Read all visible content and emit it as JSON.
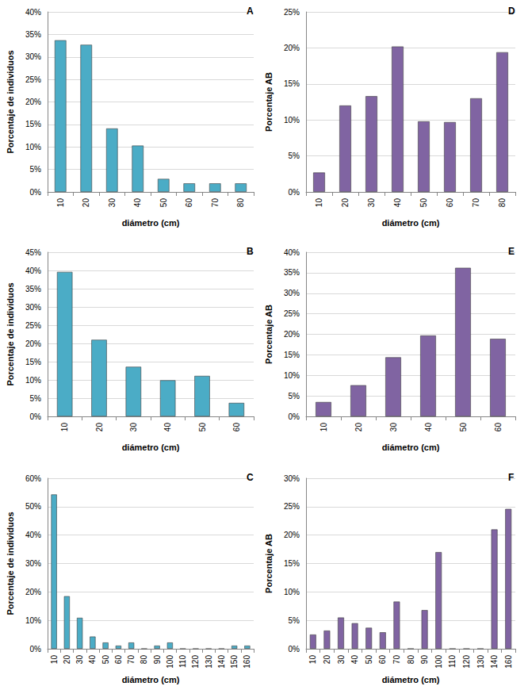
{
  "chart_data": [
    {
      "type": "bar",
      "title": "A",
      "x_label": "diámetro (cm)",
      "y_label": "Porcentaje de individuos",
      "categories": [
        "10",
        "20",
        "30",
        "40",
        "50",
        "60",
        "70",
        "80"
      ],
      "values": [
        33.7,
        32.7,
        14.1,
        10.3,
        2.9,
        1.9,
        1.9,
        1.9
      ],
      "color": "#4bacc6",
      "ylim": [
        0,
        40
      ],
      "yticks": [
        {
          "value": 0,
          "label": "0%"
        },
        {
          "value": 5,
          "label": "5%"
        },
        {
          "value": 10,
          "label": "10%"
        },
        {
          "value": 15,
          "label": "15%"
        },
        {
          "value": 20,
          "label": "20%"
        },
        {
          "value": 25,
          "label": "25%"
        },
        {
          "value": 30,
          "label": "30%"
        },
        {
          "value": 35,
          "label": "35%"
        },
        {
          "value": 40,
          "label": "40%"
        }
      ],
      "grid": true
    },
    {
      "type": "bar",
      "title": "D",
      "x_label": "diámetro (cm)",
      "y_label": "Porcentaje AB",
      "categories": [
        "10",
        "20",
        "30",
        "40",
        "50",
        "60",
        "70",
        "80"
      ],
      "values": [
        2.7,
        12.0,
        13.3,
        20.2,
        9.8,
        9.7,
        13.0,
        19.4
      ],
      "color": "#8064a2",
      "ylim": [
        0,
        25
      ],
      "yticks": [
        {
          "value": 0,
          "label": "0%"
        },
        {
          "value": 5,
          "label": "5%"
        },
        {
          "value": 10,
          "label": "10%"
        },
        {
          "value": 15,
          "label": "15%"
        },
        {
          "value": 20,
          "label": "20%"
        },
        {
          "value": 25,
          "label": "25%"
        }
      ],
      "grid": true
    },
    {
      "type": "bar",
      "title": "B",
      "x_label": "diámetro (cm)",
      "y_label": "Porcentaje de individuos",
      "categories": [
        "10",
        "20",
        "30",
        "40",
        "50",
        "60"
      ],
      "values": [
        39.6,
        21.0,
        13.6,
        9.9,
        11.1,
        3.7
      ],
      "color": "#4bacc6",
      "ylim": [
        0,
        45
      ],
      "yticks": [
        {
          "value": 0,
          "label": "0%"
        },
        {
          "value": 5,
          "label": "5%"
        },
        {
          "value": 10,
          "label": "10%"
        },
        {
          "value": 15,
          "label": "15%"
        },
        {
          "value": 20,
          "label": "20%"
        },
        {
          "value": 25,
          "label": "25%"
        },
        {
          "value": 30,
          "label": "30%"
        },
        {
          "value": 35,
          "label": "35%"
        },
        {
          "value": 40,
          "label": "40%"
        },
        {
          "value": 45,
          "label": "45%"
        }
      ],
      "grid": true
    },
    {
      "type": "bar",
      "title": "E",
      "x_label": "diámetro (cm)",
      "y_label": "Porcentaje AB",
      "categories": [
        "10",
        "20",
        "30",
        "40",
        "50",
        "60"
      ],
      "values": [
        3.5,
        7.6,
        14.4,
        19.7,
        36.2,
        18.9
      ],
      "color": "#8064a2",
      "ylim": [
        0,
        40
      ],
      "yticks": [
        {
          "value": 0,
          "label": "0%"
        },
        {
          "value": 5,
          "label": "5%"
        },
        {
          "value": 10,
          "label": "10%"
        },
        {
          "value": 15,
          "label": "15%"
        },
        {
          "value": 20,
          "label": "20%"
        },
        {
          "value": 25,
          "label": "25%"
        },
        {
          "value": 30,
          "label": "30%"
        },
        {
          "value": 35,
          "label": "35%"
        },
        {
          "value": 40,
          "label": "40%"
        }
      ],
      "grid": true
    },
    {
      "type": "bar",
      "title": "C",
      "x_label": "diámetro (cm)",
      "y_label": "Porcentaje de individuos",
      "categories": [
        "10",
        "20",
        "30",
        "40",
        "50",
        "60",
        "70",
        "80",
        "90",
        "100",
        "110",
        "120",
        "130",
        "140",
        "150",
        "160"
      ],
      "values": [
        54.3,
        18.5,
        10.9,
        4.3,
        2.2,
        1.1,
        2.2,
        0,
        1.1,
        2.2,
        0,
        0,
        0,
        0,
        1.1,
        1.1
      ],
      "color": "#4bacc6",
      "ylim": [
        0,
        60
      ],
      "yticks": [
        {
          "value": 0,
          "label": "0%"
        },
        {
          "value": 10,
          "label": "10%"
        },
        {
          "value": 20,
          "label": "20%"
        },
        {
          "value": 30,
          "label": "30%"
        },
        {
          "value": 40,
          "label": "40%"
        },
        {
          "value": 50,
          "label": "50%"
        },
        {
          "value": 60,
          "label": "60%"
        }
      ],
      "grid": true
    },
    {
      "type": "bar",
      "title": "F",
      "x_label": "diámetro (cm)",
      "y_label": "Porcentaje AB",
      "categories": [
        "10",
        "20",
        "30",
        "40",
        "50",
        "60",
        "70",
        "80",
        "90",
        "100",
        "110",
        "120",
        "130",
        "140",
        "160"
      ],
      "values": [
        2.5,
        3.2,
        5.5,
        4.5,
        3.7,
        2.9,
        8.3,
        0,
        6.8,
        17.0,
        0,
        0,
        0,
        21.0,
        24.6
      ],
      "color": "#8064a2",
      "ylim": [
        0,
        30
      ],
      "yticks": [
        {
          "value": 0,
          "label": "0%"
        },
        {
          "value": 5,
          "label": "5%"
        },
        {
          "value": 10,
          "label": "10%"
        },
        {
          "value": 15,
          "label": "15%"
        },
        {
          "value": 20,
          "label": "20%"
        },
        {
          "value": 25,
          "label": "25%"
        },
        {
          "value": 30,
          "label": "30%"
        }
      ],
      "grid": true
    }
  ]
}
